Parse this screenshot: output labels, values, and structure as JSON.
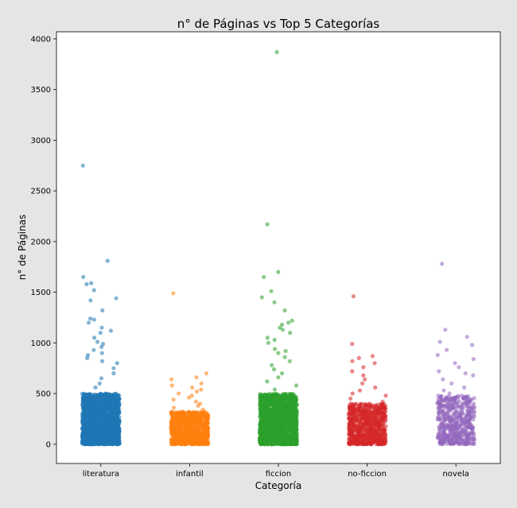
{
  "chart_data": {
    "type": "scatter",
    "subtype": "strip",
    "title": "n° de Páginas vs Top 5 Categorías",
    "xlabel": "Categoría",
    "ylabel": "n° de Páginas",
    "ylim": [
      -190,
      4070
    ],
    "yticks": [
      0,
      500,
      1000,
      1500,
      2000,
      2500,
      3000,
      3500,
      4000
    ],
    "grid": false,
    "categories": [
      "literatura",
      "infantil",
      "ficcion",
      "no-ficcion",
      "novela"
    ],
    "series": [
      {
        "category": "literatura",
        "color": "#1f77b4",
        "bulk": {
          "count": 1800,
          "range": [
            0,
            500
          ]
        },
        "spread": [
          0,
          560,
          600,
          650,
          700,
          750,
          800,
          820,
          850,
          880,
          900,
          930,
          960,
          990,
          1010,
          1050,
          1100,
          1120,
          1150,
          1200,
          1230,
          1240,
          1320,
          1420,
          1440,
          1520,
          1580,
          1590
        ],
        "outliers": [
          1650,
          1810,
          2750
        ]
      },
      {
        "category": "infantil",
        "color": "#ff7f0e",
        "bulk": {
          "count": 900,
          "range": [
            0,
            320
          ]
        },
        "spread": [
          340,
          360,
          380,
          400,
          420,
          440,
          460,
          480,
          500,
          520,
          540,
          560,
          580,
          600,
          640,
          660,
          700
        ],
        "outliers": [
          1490
        ]
      },
      {
        "category": "ficcion",
        "color": "#2ca02c",
        "bulk": {
          "count": 1700,
          "range": [
            0,
            500
          ]
        },
        "spread": [
          540,
          580,
          620,
          660,
          700,
          740,
          780,
          820,
          860,
          900,
          920,
          940,
          1000,
          1030,
          1050,
          1100,
          1130,
          1150,
          1180,
          1200,
          1220,
          1320,
          1400,
          1450,
          1510,
          1650,
          1700
        ],
        "outliers": [
          2170,
          3870
        ]
      },
      {
        "category": "no-ficcion",
        "color": "#d62728",
        "bulk": {
          "count": 700,
          "range": [
            0,
            400
          ]
        },
        "spread": [
          420,
          450,
          480,
          500,
          530,
          560,
          600,
          640,
          680,
          720,
          760,
          800,
          820,
          850,
          870,
          990
        ],
        "outliers": [
          1460
        ]
      },
      {
        "category": "novela",
        "color": "#9467bd",
        "bulk": {
          "count": 500,
          "range": [
            0,
            480
          ]
        },
        "spread": [
          500,
          530,
          560,
          600,
          640,
          680,
          700,
          720,
          760,
          800,
          840,
          880,
          930,
          980,
          1010,
          1060,
          1130
        ],
        "outliers": [
          1780
        ]
      }
    ]
  }
}
